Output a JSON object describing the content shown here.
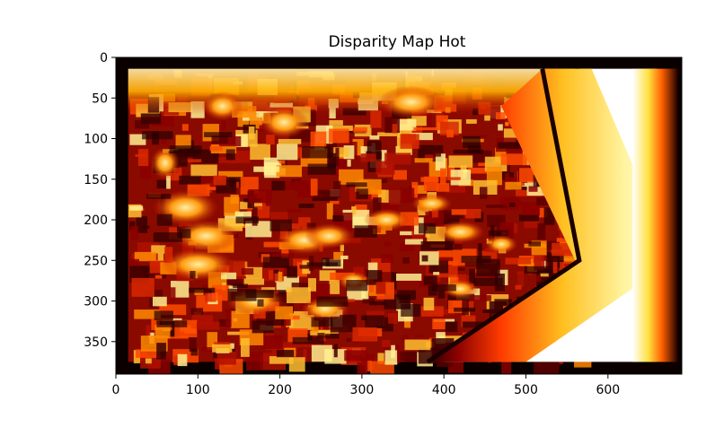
{
  "chart_data": {
    "type": "heatmap",
    "title": "Disparity Map Hot",
    "xlabel": "",
    "ylabel": "",
    "colormap": "hot",
    "image_width": 690,
    "image_height": 390,
    "x_ticks": [
      0,
      100,
      200,
      300,
      400,
      500,
      600
    ],
    "y_ticks": [
      0,
      50,
      100,
      150,
      200,
      250,
      300,
      350
    ],
    "xlim": [
      0,
      690
    ],
    "ylim": [
      390,
      0
    ],
    "y_axis_inverted": true,
    "colors": {
      "border": "#0a0000",
      "dark_red": "#5a0000",
      "red": "#c81400",
      "orange": "#ff7800",
      "yellow": "#ffe040",
      "white": "#ffffff"
    }
  }
}
